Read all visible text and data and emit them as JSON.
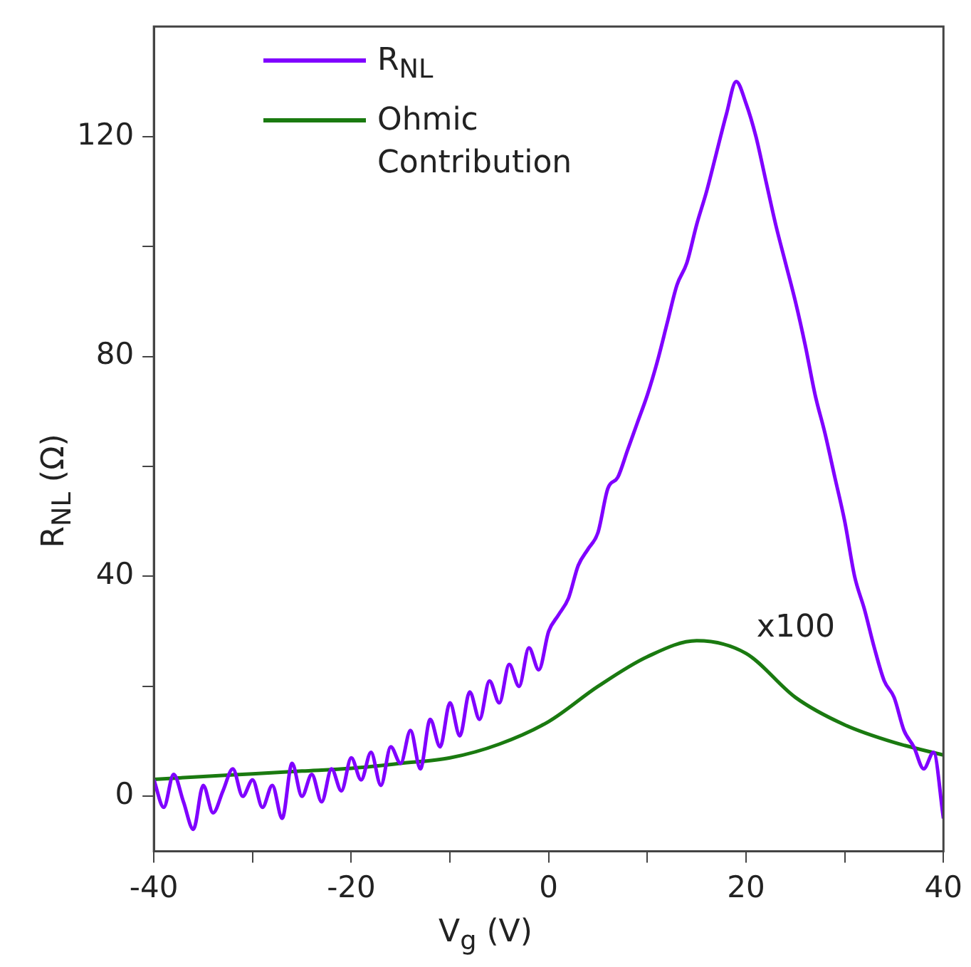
{
  "chart_data": {
    "type": "line",
    "xlabel": "V$_{g}$ (V)",
    "ylabel": "R$_{NL}$ (Ω)",
    "xlim": [
      -40,
      40
    ],
    "ylim": [
      -10,
      140
    ],
    "xticks": [
      -40,
      {
        "value": -30,
        "label": null
      },
      -20,
      {
        "value": -10,
        "label": null
      },
      0,
      {
        "value": 10,
        "label": null
      },
      20,
      {
        "value": 30,
        "label": null
      },
      40
    ],
    "yticks": [
      0,
      {
        "value": 20,
        "label": null
      },
      40,
      {
        "value": 60,
        "label": null
      },
      80,
      {
        "value": 100,
        "label": null
      },
      120
    ],
    "grid": false,
    "legend": "top left",
    "marker": "none",
    "line_style": "solid",
    "annotations": [
      "x100"
    ],
    "series": [
      {
        "name": "R$_{NL}$",
        "color": "#8000ff",
        "x": [
          -40,
          -39,
          -38,
          -37,
          -36,
          -35,
          -34,
          -33,
          -32,
          -31,
          -30,
          -29,
          -28,
          -27,
          -26,
          -25,
          -24,
          -23,
          -22,
          -21,
          -20,
          -19,
          -18,
          -17,
          -16,
          -15,
          -14,
          -13,
          -12,
          -11,
          -10,
          -9,
          -8,
          -7,
          -6,
          -5,
          -4,
          -3,
          -2,
          -1,
          0,
          1,
          2,
          3,
          4,
          5,
          6,
          7,
          8,
          9,
          10,
          11,
          12,
          13,
          14,
          15,
          16,
          17,
          18,
          19,
          20,
          21,
          22,
          23,
          24,
          25,
          26,
          27,
          28,
          29,
          30,
          31,
          32,
          33,
          34,
          35,
          36,
          37,
          38,
          39,
          40
        ],
        "values": [
          3,
          -2,
          4,
          -1,
          -6,
          2,
          -3,
          1,
          5,
          0,
          3,
          -2,
          2,
          -4,
          6,
          0,
          4,
          -1,
          5,
          1,
          7,
          3,
          8,
          2,
          9,
          6,
          12,
          5,
          14,
          9,
          17,
          11,
          19,
          14,
          21,
          17,
          24,
          20,
          27,
          23,
          30,
          33,
          36,
          42,
          45,
          48,
          56,
          58,
          63,
          68,
          73,
          79,
          86,
          93,
          97,
          104,
          110,
          117,
          124,
          130,
          126,
          120,
          112,
          104,
          97,
          90,
          82,
          73,
          66,
          58,
          50,
          40,
          34,
          27,
          21,
          18,
          12,
          9,
          5,
          8,
          -4
        ]
      },
      {
        "name": "Ohmic Contribution",
        "color": "#1a7a10",
        "x": [
          -40,
          -35,
          -30,
          -25,
          -20,
          -15,
          -10,
          -5,
          0,
          5,
          10,
          15,
          20,
          25,
          30,
          35,
          40
        ],
        "values": [
          3.1,
          3.6,
          4.1,
          4.6,
          5.1,
          6,
          7,
          9.5,
          13.6,
          20,
          25.4,
          28.3,
          26,
          18,
          13,
          9.8,
          7.5
        ]
      }
    ]
  }
}
